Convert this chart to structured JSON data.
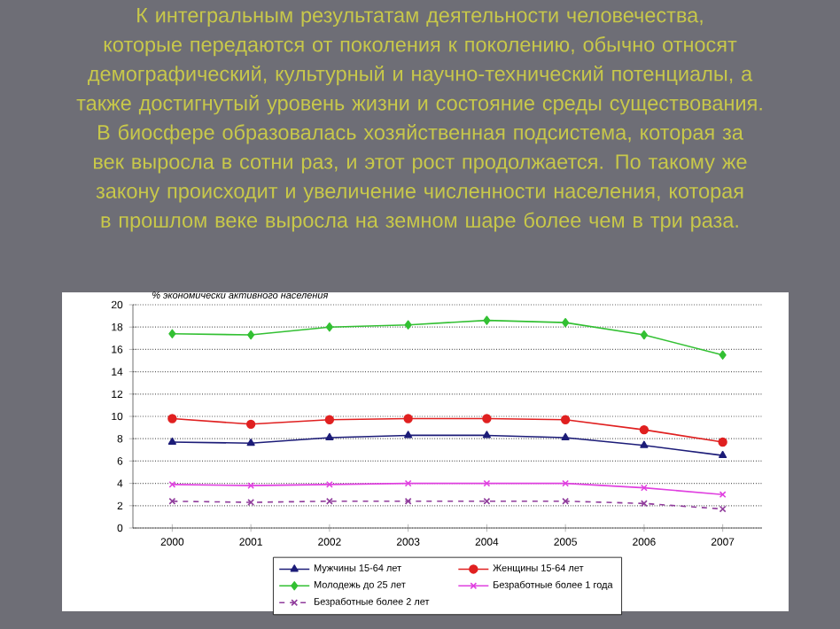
{
  "chart_data": {
    "type": "line",
    "title": "К интегральным результатам деятельности человечества, которые передаются от поколения к поколению, обычно относят демографический, культурный и научно-технический потенциалы, а также достигнутый уровень жизни и состояние среды существования.",
    "subtitle": "В биосфере образовалась хозяйственная подсистема, которая за век выросла в сотни раз, и этот рост продолжается. По такому же закону происходит и увеличение численности населения, которая в прошлом веке выросла на земном шаре более чем в три раза.",
    "ylabel": "% экономически активного населения",
    "categories": [
      "2000",
      "2001",
      "2002",
      "2003",
      "2004",
      "2005",
      "2006",
      "2007"
    ],
    "series": [
      {
        "name": "Мужчины 15-64 лет",
        "color": "#1c1c78",
        "marker": "triangle",
        "values": [
          7.7,
          7.6,
          8.1,
          8.3,
          8.3,
          8.1,
          7.4,
          6.5
        ]
      },
      {
        "name": "Женщины 15-64 лет",
        "color": "#e02020",
        "marker": "circle",
        "values": [
          9.8,
          9.3,
          9.7,
          9.8,
          9.8,
          9.7,
          8.8,
          7.7
        ]
      },
      {
        "name": "Молодежь до 25 лет",
        "color": "#33c033",
        "marker": "diamond",
        "values": [
          17.4,
          17.3,
          18.0,
          18.2,
          18.6,
          18.4,
          17.3,
          15.5
        ]
      },
      {
        "name": "Безработные более 1 года",
        "color": "#e040e0",
        "marker": "cross",
        "values": [
          3.9,
          3.8,
          3.9,
          4.0,
          4.0,
          4.0,
          3.6,
          3.0
        ]
      },
      {
        "name": "Безработные более 2 лет",
        "color": "#903c9c",
        "marker": "cross",
        "line_style": "dashed",
        "values": [
          2.4,
          2.3,
          2.4,
          2.4,
          2.4,
          2.4,
          2.2,
          1.7
        ]
      }
    ],
    "ylim": [
      0,
      20
    ],
    "yticks": [
      0,
      2,
      4,
      6,
      8,
      10,
      12,
      14,
      16,
      18,
      20
    ],
    "grid": "y",
    "legend": "bottom"
  }
}
